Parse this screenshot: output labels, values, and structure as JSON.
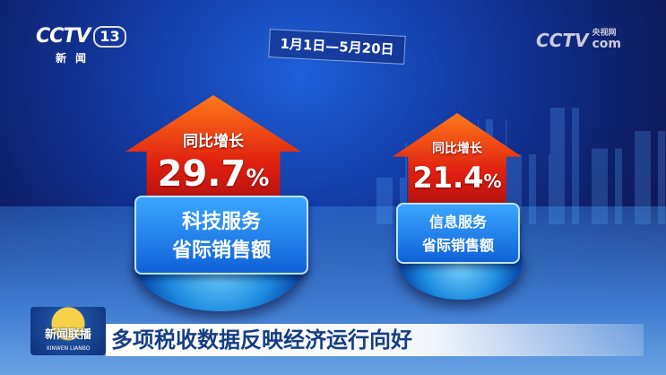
{
  "channel_logo": {
    "brand": "CCTV",
    "number": "13",
    "subtitle": "新闻"
  },
  "site_logo": {
    "brand": "CCTV",
    "small": "央视网",
    "suffix": "com"
  },
  "date_range": "1月1日—5月20日",
  "stats": [
    {
      "caption": "同比增长",
      "value": "29.7",
      "unit": "%",
      "label_line1": "科技服务",
      "label_line2": "省际销售额"
    },
    {
      "caption": "同比增长",
      "value": "21.4",
      "unit": "%",
      "label_line1": "信息服务",
      "label_line2": "省际销售额"
    }
  ],
  "program_logo": {
    "cn": "新闻联播",
    "en": "XINWEN LIANBO"
  },
  "headline": "多项税收数据反映经济运行向好",
  "colors": {
    "arrow": "#e02010",
    "label": "#1f7ae8",
    "headline_text": "#163e86"
  }
}
